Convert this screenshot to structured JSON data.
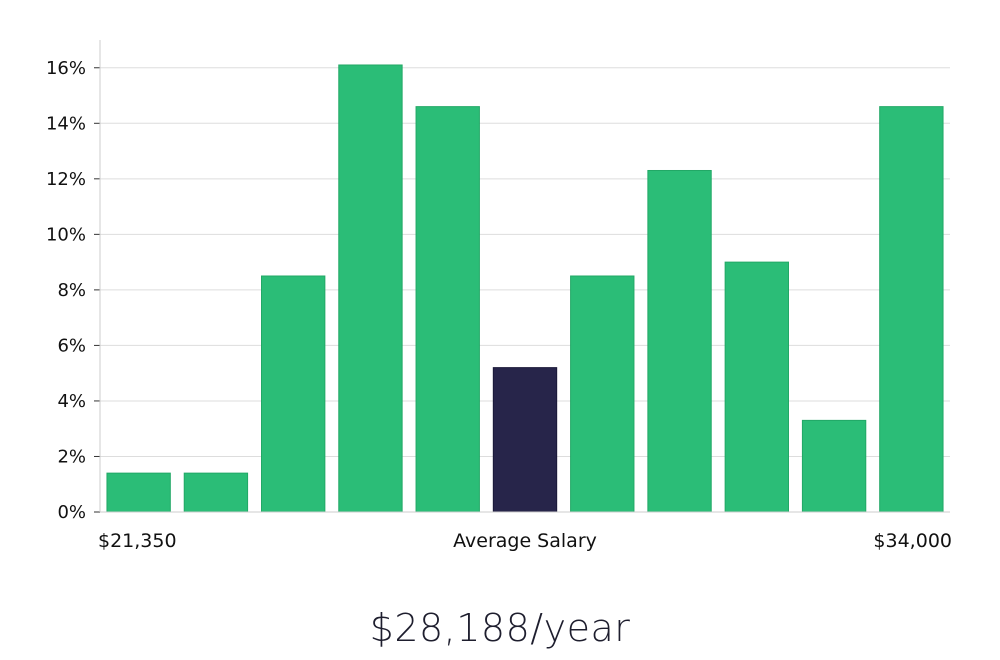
{
  "chart_data": {
    "type": "bar",
    "title": "",
    "xlabel": "Average Salary",
    "x_range_labels": {
      "min": "$21,350",
      "max": "$34,000"
    },
    "ylabel": "",
    "ylim": [
      0,
      17
    ],
    "yticks": [
      0,
      2,
      4,
      6,
      8,
      10,
      12,
      14,
      16
    ],
    "ytick_suffix": "%",
    "values": [
      1.4,
      1.4,
      8.5,
      16.1,
      14.6,
      5.2,
      8.5,
      12.3,
      9.0,
      3.3,
      14.6
    ],
    "highlight_index": 5,
    "colors": {
      "bar": "#2bbd77",
      "highlight": "#27254a",
      "grid": "#dddddd",
      "axis": "#cccccc"
    },
    "grid": true
  },
  "salary_text": "$28,188/year"
}
